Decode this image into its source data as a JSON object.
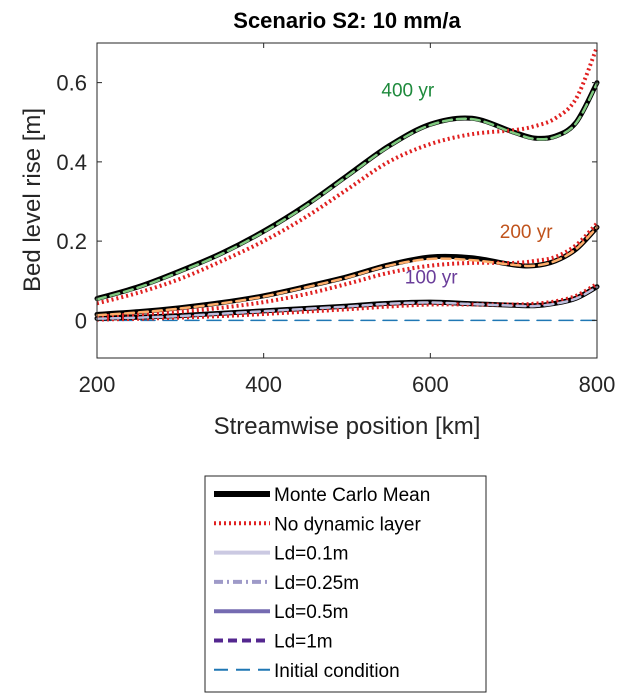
{
  "chart_data": {
    "type": "line",
    "title": "Scenario S2: 10 mm/a",
    "xlabel": "Streamwise position [km]",
    "ylabel": "Bed level rise [m]",
    "xlim": [
      200,
      800
    ],
    "ylim": [
      -0.095,
      0.7
    ],
    "xticks": [
      200,
      400,
      600,
      800
    ],
    "xtick_labels": [
      "200",
      "400",
      "600",
      "800"
    ],
    "yticks": [
      0,
      0.2,
      0.4,
      0.6
    ],
    "ytick_labels": [
      "0",
      "0.2",
      "0.4",
      "0.6"
    ],
    "grid": false,
    "legend_position": "below",
    "annotations": [
      {
        "text": "400 yr",
        "x": 573,
        "y": 0.565,
        "color": "#1e8a3c"
      },
      {
        "text": "200 yr",
        "x": 715,
        "y": 0.208,
        "color": "#c0531c"
      },
      {
        "text": "100 yr",
        "x": 601,
        "y": 0.093,
        "color": "#6a3d9a"
      }
    ],
    "x": [
      200,
      250,
      300,
      350,
      400,
      450,
      500,
      550,
      600,
      650,
      700,
      725,
      750,
      775,
      800
    ],
    "series": [
      {
        "name": "Monte Carlo Mean",
        "group": "400 yr",
        "color": "#000000",
        "style": "solid",
        "width": 5,
        "values": [
          0.055,
          0.085,
          0.125,
          0.17,
          0.225,
          0.29,
          0.365,
          0.44,
          0.495,
          0.51,
          0.475,
          0.46,
          0.465,
          0.5,
          0.6
        ]
      },
      {
        "name": "No dynamic layer",
        "group": "400 yr",
        "color": "#e02020",
        "style": "dotted",
        "width": 4,
        "values": [
          0.043,
          0.07,
          0.105,
          0.15,
          0.2,
          0.26,
          0.33,
          0.4,
          0.445,
          0.47,
          0.48,
          0.49,
          0.51,
          0.56,
          0.69
        ]
      },
      {
        "name": "400 yr band",
        "group": "400 yr",
        "color": "#7fc97f",
        "style": "dashed",
        "width": 2.5,
        "values": [
          0.053,
          0.083,
          0.123,
          0.168,
          0.223,
          0.288,
          0.363,
          0.438,
          0.493,
          0.508,
          0.473,
          0.458,
          0.463,
          0.498,
          0.598
        ]
      },
      {
        "name": "Monte Carlo Mean",
        "group": "200 yr",
        "color": "#000000",
        "style": "solid",
        "width": 5,
        "values": [
          0.015,
          0.022,
          0.032,
          0.045,
          0.062,
          0.085,
          0.11,
          0.14,
          0.16,
          0.158,
          0.14,
          0.138,
          0.15,
          0.18,
          0.235
        ]
      },
      {
        "name": "No dynamic layer",
        "group": "200 yr",
        "color": "#e02020",
        "style": "dotted",
        "width": 4,
        "values": [
          0.01,
          0.015,
          0.022,
          0.032,
          0.046,
          0.066,
          0.092,
          0.12,
          0.138,
          0.145,
          0.145,
          0.15,
          0.16,
          0.19,
          0.245
        ]
      },
      {
        "name": "200 yr band",
        "group": "200 yr",
        "color": "#fdae6b",
        "style": "dashed",
        "width": 2.5,
        "values": [
          0.013,
          0.02,
          0.03,
          0.043,
          0.06,
          0.083,
          0.108,
          0.138,
          0.155,
          0.152,
          0.14,
          0.138,
          0.15,
          0.18,
          0.235
        ]
      },
      {
        "name": "Monte Carlo Mean",
        "group": "100 yr",
        "color": "#000000",
        "style": "solid",
        "width": 5,
        "values": [
          0.005,
          0.008,
          0.012,
          0.018,
          0.024,
          0.03,
          0.036,
          0.043,
          0.046,
          0.042,
          0.038,
          0.037,
          0.043,
          0.056,
          0.085
        ]
      },
      {
        "name": "No dynamic layer",
        "group": "100 yr",
        "color": "#e02020",
        "style": "dotted",
        "width": 4,
        "values": [
          0.002,
          0.004,
          0.007,
          0.011,
          0.016,
          0.022,
          0.028,
          0.035,
          0.04,
          0.04,
          0.04,
          0.042,
          0.048,
          0.062,
          0.092
        ]
      },
      {
        "name": "100 yr band",
        "group": "100 yr",
        "color": "#bcbddc",
        "style": "dashed",
        "width": 2.5,
        "values": [
          0.004,
          0.007,
          0.011,
          0.017,
          0.023,
          0.029,
          0.035,
          0.042,
          0.045,
          0.041,
          0.037,
          0.036,
          0.042,
          0.055,
          0.084
        ]
      },
      {
        "name": "Initial condition",
        "group": "initial",
        "color": "#1f77b4",
        "style": "longdash",
        "width": 1.5,
        "values": [
          0,
          0,
          0,
          0,
          0,
          0,
          0,
          0,
          0,
          0,
          0,
          0,
          0,
          0,
          0
        ]
      }
    ],
    "legend": [
      {
        "label": "Monte Carlo Mean",
        "color": "#000000",
        "style": "solid",
        "width": 6
      },
      {
        "label": "No dynamic layer",
        "color": "#e02020",
        "style": "dotted",
        "width": 4
      },
      {
        "label": "Ld=0.1m",
        "color": "#cbc9e2",
        "style": "solid",
        "width": 4
      },
      {
        "label": "Ld=0.25m",
        "color": "#9e9ac8",
        "style": "dashdot",
        "width": 4
      },
      {
        "label": "Ld=0.5m",
        "color": "#756bb1",
        "style": "solid",
        "width": 4
      },
      {
        "label": "Ld=1m",
        "color": "#54278f",
        "style": "dashed",
        "width": 4
      },
      {
        "label": "Initial condition",
        "color": "#1f77b4",
        "style": "longdash",
        "width": 2
      }
    ]
  }
}
